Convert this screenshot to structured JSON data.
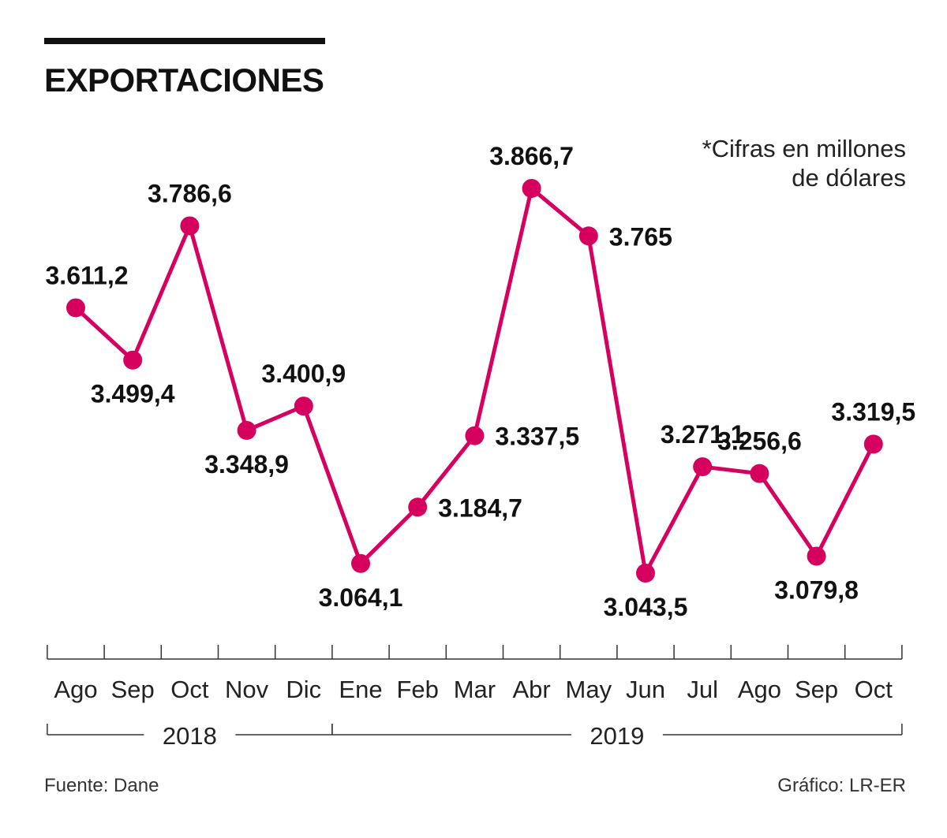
{
  "header": {
    "title": "EXPORTACIONES",
    "note_line1": "*Cifras en millones",
    "note_line2": "de dólares"
  },
  "footer": {
    "source": "Fuente: Dane",
    "credit": "Gráfico: LR-ER"
  },
  "colors": {
    "series": "#d6005f",
    "axis": "#333333",
    "text": "#111111"
  },
  "chart_data": {
    "type": "line",
    "title": "EXPORTACIONES",
    "xlabel": "",
    "ylabel": "",
    "ylim": [
      3000,
      3900
    ],
    "grid": false,
    "categories": [
      "Ago",
      "Sep",
      "Oct",
      "Nov",
      "Dic",
      "Ene",
      "Feb",
      "Mar",
      "Abr",
      "May",
      "Jun",
      "Jul",
      "Ago",
      "Sep",
      "Oct"
    ],
    "years": [
      {
        "label": "2018",
        "start": 0,
        "end": 4
      },
      {
        "label": "2019",
        "start": 5,
        "end": 14
      }
    ],
    "series": [
      {
        "name": "Exportaciones",
        "values": [
          3611.2,
          3499.4,
          3786.6,
          3348.9,
          3400.9,
          3064.1,
          3184.7,
          3337.5,
          3866.7,
          3765,
          3043.5,
          3271.1,
          3256.6,
          3079.8,
          3319.5
        ],
        "labels": [
          "3.611,2",
          "3.499,4",
          "3.786,6",
          "3.348,9",
          "3.400,9",
          "3.064,1",
          "3.184,7",
          "3.337,5",
          "3.866,7",
          "3.765",
          "3.043,5",
          "3.271,1",
          "3.256,6",
          "3.079,8",
          "3.319,5"
        ],
        "label_side": [
          "above",
          "below",
          "above",
          "below",
          "above",
          "below",
          "right",
          "right",
          "above",
          "right",
          "below",
          "above",
          "above",
          "below",
          "above"
        ]
      }
    ]
  }
}
